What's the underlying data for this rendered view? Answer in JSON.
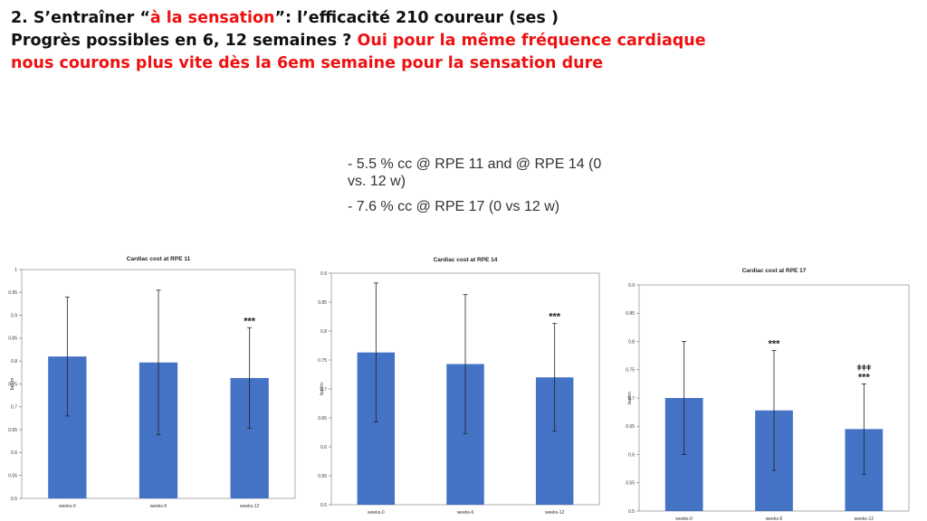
{
  "slide": {
    "title_line1_a": "2. S’entraîner “",
    "title_line1_red": "à la sensation",
    "title_line1_b": "”: l’efficacité 210 coureur (ses )",
    "title_line2_a": "Progrès possibles en 6, 12 semaines ? ",
    "title_line2_red": "Oui pour la même fréquence cardiaque",
    "title_line3_red": "nous courons plus vite dès la 6em semaine pour la sensation dure",
    "notes": [
      "- 5.5 % cc @ RPE 11 and @ RPE 14 (0 vs. 12 w)",
      "- 7.6 % cc @ RPE 17 (0 vs 12 w)"
    ]
  },
  "colors": {
    "bar": "#4472c4",
    "title_red": "#ee1111",
    "text": "#111111"
  },
  "chart_data": [
    {
      "type": "bar",
      "title": "Cardiac cost at RPE 11",
      "ylabel": "bat/m",
      "categories": [
        "weeks-0",
        "weeks-6",
        "weeks-12"
      ],
      "values": [
        0.81,
        0.797,
        0.763
      ],
      "error": [
        0.13,
        0.158,
        0.11
      ],
      "annotations": [
        "",
        "",
        "***"
      ],
      "ylim": [
        0.5,
        1.0
      ],
      "yticks": [
        "0.5",
        "0.55",
        "0.6",
        "0.65",
        "0.7",
        "0.75",
        "0.8",
        "0.85",
        "0.9",
        "0.95",
        "1"
      ]
    },
    {
      "type": "bar",
      "title": "Cardiac cost at RPE 14",
      "ylabel": "bat/m",
      "categories": [
        "weeks-0",
        "weeks-6",
        "weeks-12"
      ],
      "values": [
        0.763,
        0.743,
        0.72
      ],
      "error": [
        0.12,
        0.12,
        0.093
      ],
      "annotations": [
        "",
        "",
        "***"
      ],
      "ylim": [
        0.5,
        0.9
      ],
      "yticks": [
        "0.5",
        "0.55",
        "0.6",
        "0.65",
        "0.7",
        "0.75",
        "0.8",
        "0.85",
        "0.9"
      ]
    },
    {
      "type": "bar",
      "title": "Cardiac cost at RPE 17",
      "ylabel": "bat/m",
      "categories": [
        "weeks-0",
        "weeks-6",
        "weeks-12"
      ],
      "values": [
        0.7,
        0.678,
        0.645
      ],
      "error": [
        0.1,
        0.106,
        0.08
      ],
      "annotations": [
        "",
        "***",
        "***"
      ],
      "annotations_top": [
        "",
        "",
        "ǂǂǂ"
      ],
      "ylim": [
        0.5,
        0.9
      ],
      "yticks": [
        "0.5",
        "0.55",
        "0.6",
        "0.65",
        "0.7",
        "0.75",
        "0.8",
        "0.85",
        "0.9"
      ]
    }
  ]
}
